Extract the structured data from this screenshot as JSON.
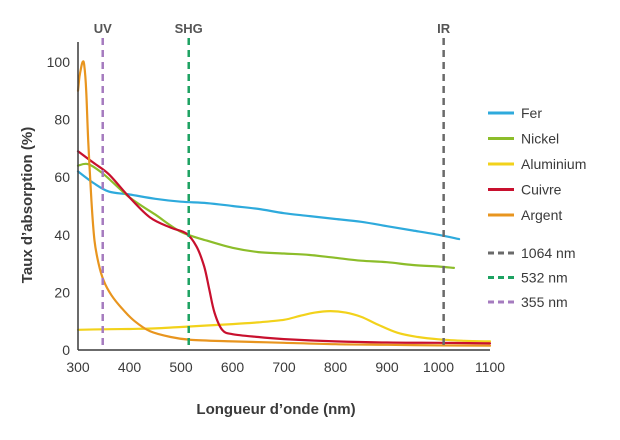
{
  "chart_data": {
    "type": "line",
    "title": "",
    "xlabel": "Longueur d’onde (nm)",
    "ylabel": "Taux d’absorption (%)",
    "xlim": [
      300,
      1100
    ],
    "ylim": [
      0,
      100
    ],
    "x_ticks": [
      300,
      400,
      500,
      600,
      700,
      800,
      900,
      1000,
      1100
    ],
    "y_ticks": [
      0,
      20,
      40,
      60,
      80,
      100
    ],
    "grid": false,
    "legend_position": "right",
    "series": [
      {
        "name": "Fer",
        "color": "#2eaadc",
        "x": [
          300,
          330,
          360,
          400,
          450,
          500,
          550,
          600,
          650,
          700,
          750,
          800,
          850,
          900,
          950,
          1000,
          1040
        ],
        "y": [
          62,
          58,
          55,
          54,
          52.5,
          51.5,
          51,
          50,
          49,
          47.5,
          46.5,
          45.5,
          44.5,
          43,
          41.5,
          40,
          38.5
        ]
      },
      {
        "name": "Nickel",
        "color": "#8cbd2a",
        "x": [
          300,
          320,
          350,
          400,
          450,
          500,
          550,
          600,
          650,
          700,
          750,
          800,
          850,
          900,
          950,
          1000,
          1030
        ],
        "y": [
          64,
          64.5,
          61,
          53,
          47,
          41,
          38,
          35.5,
          34,
          33.5,
          33,
          32,
          31,
          30.5,
          29.5,
          29,
          28.5
        ]
      },
      {
        "name": "Aluminium",
        "color": "#f2d21b",
        "x": [
          300,
          350,
          400,
          450,
          500,
          550,
          600,
          650,
          700,
          730,
          760,
          790,
          820,
          850,
          880,
          920,
          960,
          1000,
          1050,
          1100
        ],
        "y": [
          7,
          7.2,
          7.3,
          7.5,
          8,
          8.5,
          9,
          9.6,
          10.5,
          11.8,
          13,
          13.5,
          13,
          11.5,
          9,
          6,
          4.5,
          3.7,
          3.2,
          3
        ]
      },
      {
        "name": "Cuivre",
        "color": "#c8102e",
        "x": [
          300,
          330,
          360,
          400,
          440,
          480,
          510,
          530,
          545,
          555,
          565,
          580,
          600,
          650,
          700,
          800,
          900,
          1000,
          1100
        ],
        "y": [
          69,
          65,
          61,
          53,
          46,
          42.5,
          40.5,
          36,
          29,
          21,
          13,
          7,
          5.5,
          4.5,
          3.8,
          3,
          2.6,
          2.5,
          2.3
        ]
      },
      {
        "name": "Argent",
        "color": "#e8951f",
        "x": [
          300,
          303,
          306,
          309,
          312,
          316,
          320,
          326,
          332,
          340,
          350,
          365,
          385,
          410,
          440,
          480,
          520,
          600,
          700,
          800,
          900,
          1000,
          1100
        ],
        "y": [
          90,
          95,
          98,
          100,
          99,
          90,
          72,
          52,
          38,
          30,
          24,
          19,
          14.5,
          10,
          6.5,
          4.5,
          3.5,
          3,
          2.5,
          2,
          1.8,
          1.6,
          1.5
        ]
      }
    ],
    "markers": [
      {
        "name": "1064 nm",
        "label": "IR",
        "x": 1010,
        "color": "#6a6a6a"
      },
      {
        "name": "532 nm",
        "label": "SHG",
        "x": 515,
        "color": "#1ea262"
      },
      {
        "name": "355 nm",
        "label": "UV",
        "x": 348,
        "color": "#a57bbf"
      }
    ]
  }
}
